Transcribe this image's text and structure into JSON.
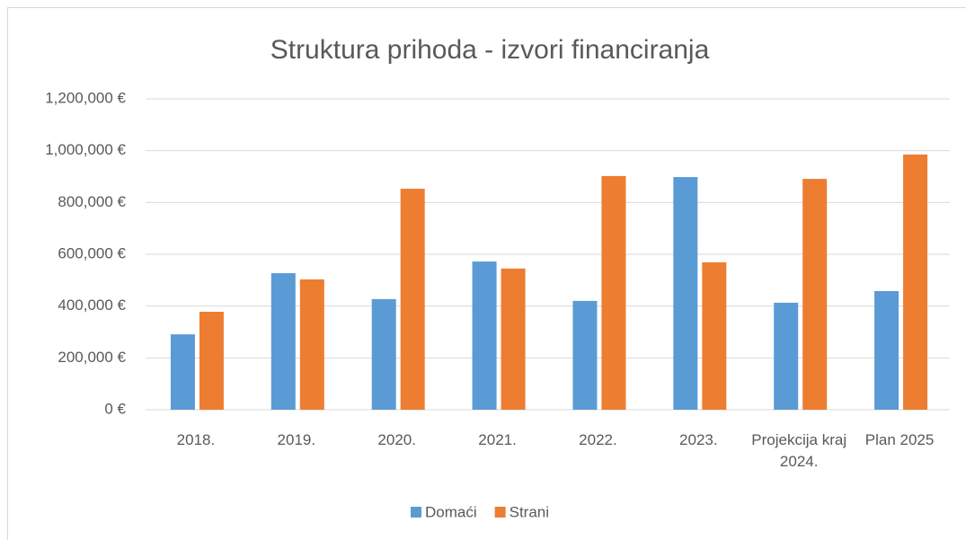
{
  "chart_data": {
    "type": "bar",
    "title": "Struktura prihoda - izvori financiranja",
    "categories": [
      "2018.",
      "2019.",
      "2020.",
      "2021.",
      "2022.",
      "2023.",
      "Projekcija kraj 2024.",
      "Plan 2025"
    ],
    "series": [
      {
        "name": "Domaći",
        "color": "#5b9bd5",
        "values": [
          291000,
          527000,
          427000,
          572000,
          420000,
          898000,
          413000,
          458000
        ]
      },
      {
        "name": "Strani",
        "color": "#ed7d31",
        "values": [
          378000,
          503000,
          853000,
          545000,
          902000,
          569000,
          891000,
          985000
        ]
      }
    ],
    "ylim": [
      0,
      1200000
    ],
    "yticks": [
      {
        "value": 0,
        "label": "0 €"
      },
      {
        "value": 200000,
        "label": "200,000 €"
      },
      {
        "value": 400000,
        "label": "400,000 €"
      },
      {
        "value": 600000,
        "label": "600,000 €"
      },
      {
        "value": 800000,
        "label": "800,000 €"
      },
      {
        "value": 1000000,
        "label": "1,000,000 €"
      },
      {
        "value": 1200000,
        "label": "1,200,000 €"
      }
    ],
    "grid": true,
    "legend": "bottom"
  }
}
